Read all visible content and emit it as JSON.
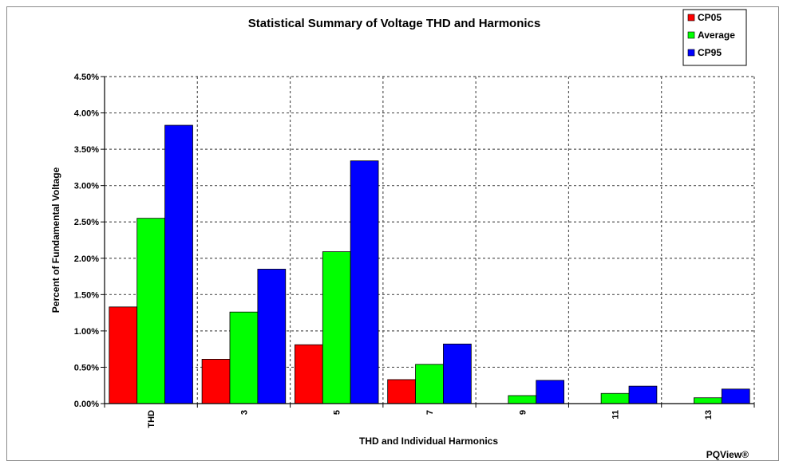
{
  "chart_data": {
    "type": "bar",
    "title": "Statistical Summary of Voltage THD and Harmonics",
    "xlabel": "THD and Individual Harmonics",
    "ylabel": "Percent of Fundamental Voltage",
    "categories": [
      "THD",
      "3",
      "5",
      "7",
      "9",
      "11",
      "13"
    ],
    "series": [
      {
        "name": "CP05",
        "color": "#ff0000",
        "values": [
          1.33,
          0.61,
          0.81,
          0.33,
          0.0,
          0.0,
          0.0
        ]
      },
      {
        "name": "Average",
        "color": "#00ff00",
        "values": [
          2.55,
          1.26,
          2.09,
          0.54,
          0.11,
          0.14,
          0.08
        ]
      },
      {
        "name": "CP95",
        "color": "#0000ff",
        "values": [
          3.83,
          1.85,
          3.34,
          0.82,
          0.32,
          0.24,
          0.2
        ]
      }
    ],
    "ylim": [
      0,
      4.5
    ],
    "yticks": [
      "0.00%",
      "0.50%",
      "1.00%",
      "1.50%",
      "2.00%",
      "2.50%",
      "3.00%",
      "3.50%",
      "4.00%",
      "4.50%"
    ],
    "grid": true,
    "legend_position": "top-right"
  },
  "watermark": "PQView®"
}
